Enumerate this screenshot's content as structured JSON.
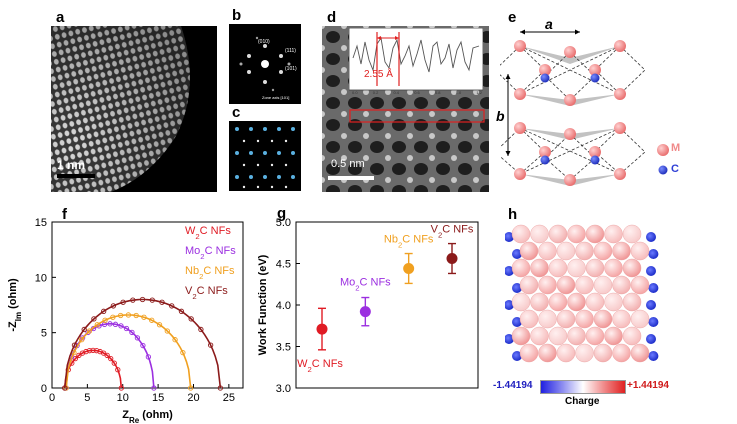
{
  "panels": {
    "a": {
      "letter": "a",
      "scalebar": "1 nm"
    },
    "b": {
      "letter": "b",
      "spot_labels": [
        "(010)",
        "(111)",
        "(101)"
      ],
      "zone_axis": "Zone axis [101]"
    },
    "c": {
      "letter": "c"
    },
    "d": {
      "letter": "d",
      "inset_spacing": "2.55 Å",
      "scalebar": "0.5 nm",
      "inset_ticks": [
        "0.0",
        "0.2",
        "0.4",
        "0.6",
        "0.8",
        "1.0",
        "1.2"
      ]
    },
    "e": {
      "letter": "e",
      "lattice_a": "a",
      "lattice_b": "b",
      "legend": [
        {
          "label": "M",
          "color": "#f08a8a"
        },
        {
          "label": "C",
          "color": "#2f3fd6"
        }
      ]
    },
    "f": {
      "letter": "f"
    },
    "g": {
      "letter": "g"
    },
    "h": {
      "letter": "h",
      "colorbar_min": "-1.44194",
      "colorbar_max": "+1.44194",
      "colorbar_label": "Charge"
    }
  },
  "chart_data": [
    {
      "type": "scatter",
      "panel": "f",
      "xlabel": "Z_Re (ohm)",
      "ylabel": "-Z_Im (ohm)",
      "xlim": [
        0,
        27
      ],
      "ylim": [
        0,
        15
      ],
      "xticks": [
        0,
        5,
        10,
        15,
        20,
        25
      ],
      "yticks": [
        0,
        5,
        10,
        15
      ],
      "legend_position": "top-right",
      "series": [
        {
          "name": "W2C NFs",
          "color": "#e01b24",
          "center": 5.8,
          "radius": 4.0,
          "peak": 3.4,
          "start": 1.8,
          "end": 9.8
        },
        {
          "name": "Mo2C NFs",
          "color": "#9b2fe0",
          "center": 8.2,
          "radius": 6.2,
          "peak": 5.8,
          "start": 2.0,
          "end": 14.4
        },
        {
          "name": "Nb2C NFs",
          "color": "#f0a020",
          "center": 10.8,
          "radius": 8.8,
          "peak": 6.6,
          "start": 2.0,
          "end": 19.6
        },
        {
          "name": "V2C NFs",
          "color": "#8b1a1a",
          "center": 12.8,
          "radius": 11.0,
          "peak": 8.0,
          "start": 1.8,
          "end": 23.8
        }
      ]
    },
    {
      "type": "scatter",
      "panel": "g",
      "ylabel": "Work Function (eV)",
      "ylim": [
        3.0,
        5.0
      ],
      "yticks": [
        "3.0",
        "3.5",
        "4.0",
        "4.5",
        "5.0"
      ],
      "categories": [
        "W2C NFs",
        "Mo2C NFs",
        "Nb2C NFs",
        "V2C NFs"
      ],
      "values": [
        3.71,
        3.92,
        4.44,
        4.56
      ],
      "errors": [
        0.25,
        0.17,
        0.18,
        0.18
      ],
      "colors": [
        "#e01b24",
        "#9b2fe0",
        "#f0a020",
        "#8b1a1a"
      ]
    }
  ]
}
